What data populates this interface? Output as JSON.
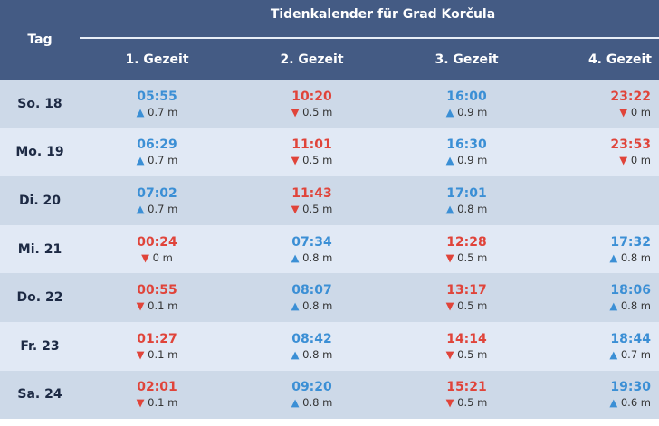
{
  "header": {
    "title": "Tidenkalender für Grad Korčula",
    "day_label": "Tag",
    "columns": [
      "1. Gezeit",
      "2. Gezeit",
      "3. Gezeit",
      "4. Gezeit"
    ]
  },
  "colors": {
    "high": "#3b8fd5",
    "low": "#e0443a",
    "header": "#445b84"
  },
  "rows": [
    {
      "day": "So. 18",
      "tides": [
        {
          "time": "05:55",
          "type": "high",
          "height": "0.7 m"
        },
        {
          "time": "10:20",
          "type": "low",
          "height": "0.5 m"
        },
        {
          "time": "16:00",
          "type": "high",
          "height": "0.9 m"
        },
        {
          "time": "23:22",
          "type": "low",
          "height": "0 m"
        }
      ]
    },
    {
      "day": "Mo. 19",
      "tides": [
        {
          "time": "06:29",
          "type": "high",
          "height": "0.7 m"
        },
        {
          "time": "11:01",
          "type": "low",
          "height": "0.5 m"
        },
        {
          "time": "16:30",
          "type": "high",
          "height": "0.9 m"
        },
        {
          "time": "23:53",
          "type": "low",
          "height": "0 m"
        }
      ]
    },
    {
      "day": "Di. 20",
      "tides": [
        {
          "time": "07:02",
          "type": "high",
          "height": "0.7 m"
        },
        {
          "time": "11:43",
          "type": "low",
          "height": "0.5 m"
        },
        {
          "time": "17:01",
          "type": "high",
          "height": "0.8 m"
        }
      ]
    },
    {
      "day": "Mi. 21",
      "tides": [
        {
          "time": "00:24",
          "type": "low",
          "height": "0 m"
        },
        {
          "time": "07:34",
          "type": "high",
          "height": "0.8 m"
        },
        {
          "time": "12:28",
          "type": "low",
          "height": "0.5 m"
        },
        {
          "time": "17:32",
          "type": "high",
          "height": "0.8 m"
        }
      ]
    },
    {
      "day": "Do. 22",
      "tides": [
        {
          "time": "00:55",
          "type": "low",
          "height": "0.1 m"
        },
        {
          "time": "08:07",
          "type": "high",
          "height": "0.8 m"
        },
        {
          "time": "13:17",
          "type": "low",
          "height": "0.5 m"
        },
        {
          "time": "18:06",
          "type": "high",
          "height": "0.8 m"
        }
      ]
    },
    {
      "day": "Fr. 23",
      "tides": [
        {
          "time": "01:27",
          "type": "low",
          "height": "0.1 m"
        },
        {
          "time": "08:42",
          "type": "high",
          "height": "0.8 m"
        },
        {
          "time": "14:14",
          "type": "low",
          "height": "0.5 m"
        },
        {
          "time": "18:44",
          "type": "high",
          "height": "0.7 m"
        }
      ]
    },
    {
      "day": "Sa. 24",
      "tides": [
        {
          "time": "02:01",
          "type": "low",
          "height": "0.1 m"
        },
        {
          "time": "09:20",
          "type": "high",
          "height": "0.8 m"
        },
        {
          "time": "15:21",
          "type": "low",
          "height": "0.5 m"
        },
        {
          "time": "19:30",
          "type": "high",
          "height": "0.6 m"
        }
      ]
    }
  ]
}
